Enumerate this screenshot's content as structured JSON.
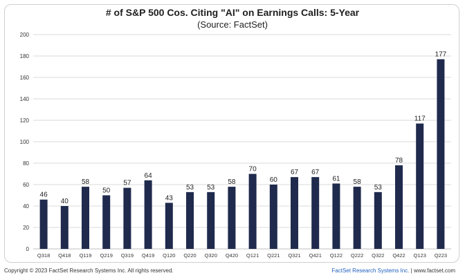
{
  "chart_data": {
    "type": "bar",
    "title": "# of S&P 500 Cos. Citing \"AI\" on Earnings Calls: 5-Year",
    "subtitle": "(Source: FactSet)",
    "categories": [
      "Q318",
      "Q418",
      "Q119",
      "Q219",
      "Q319",
      "Q419",
      "Q120",
      "Q220",
      "Q320",
      "Q420",
      "Q121",
      "Q221",
      "Q321",
      "Q421",
      "Q122",
      "Q222",
      "Q322",
      "Q422",
      "Q123",
      "Q223"
    ],
    "values": [
      46,
      40,
      58,
      50,
      57,
      64,
      43,
      53,
      53,
      58,
      70,
      60,
      67,
      67,
      61,
      58,
      53,
      78,
      117,
      177
    ],
    "ylim": [
      0,
      200
    ],
    "yticks": [
      0,
      20,
      40,
      60,
      80,
      100,
      120,
      140,
      160,
      180,
      200
    ],
    "grid": true,
    "bar_color": "#1f2a4d",
    "grid_color": "#d9d9d9"
  },
  "footer": {
    "copyright": "Copyright © 2023 FactSet Research Systems Inc. All rights reserved.",
    "brand": "FactSet Research Systems Inc.",
    "separator": "|",
    "website": "www.factset.com"
  }
}
